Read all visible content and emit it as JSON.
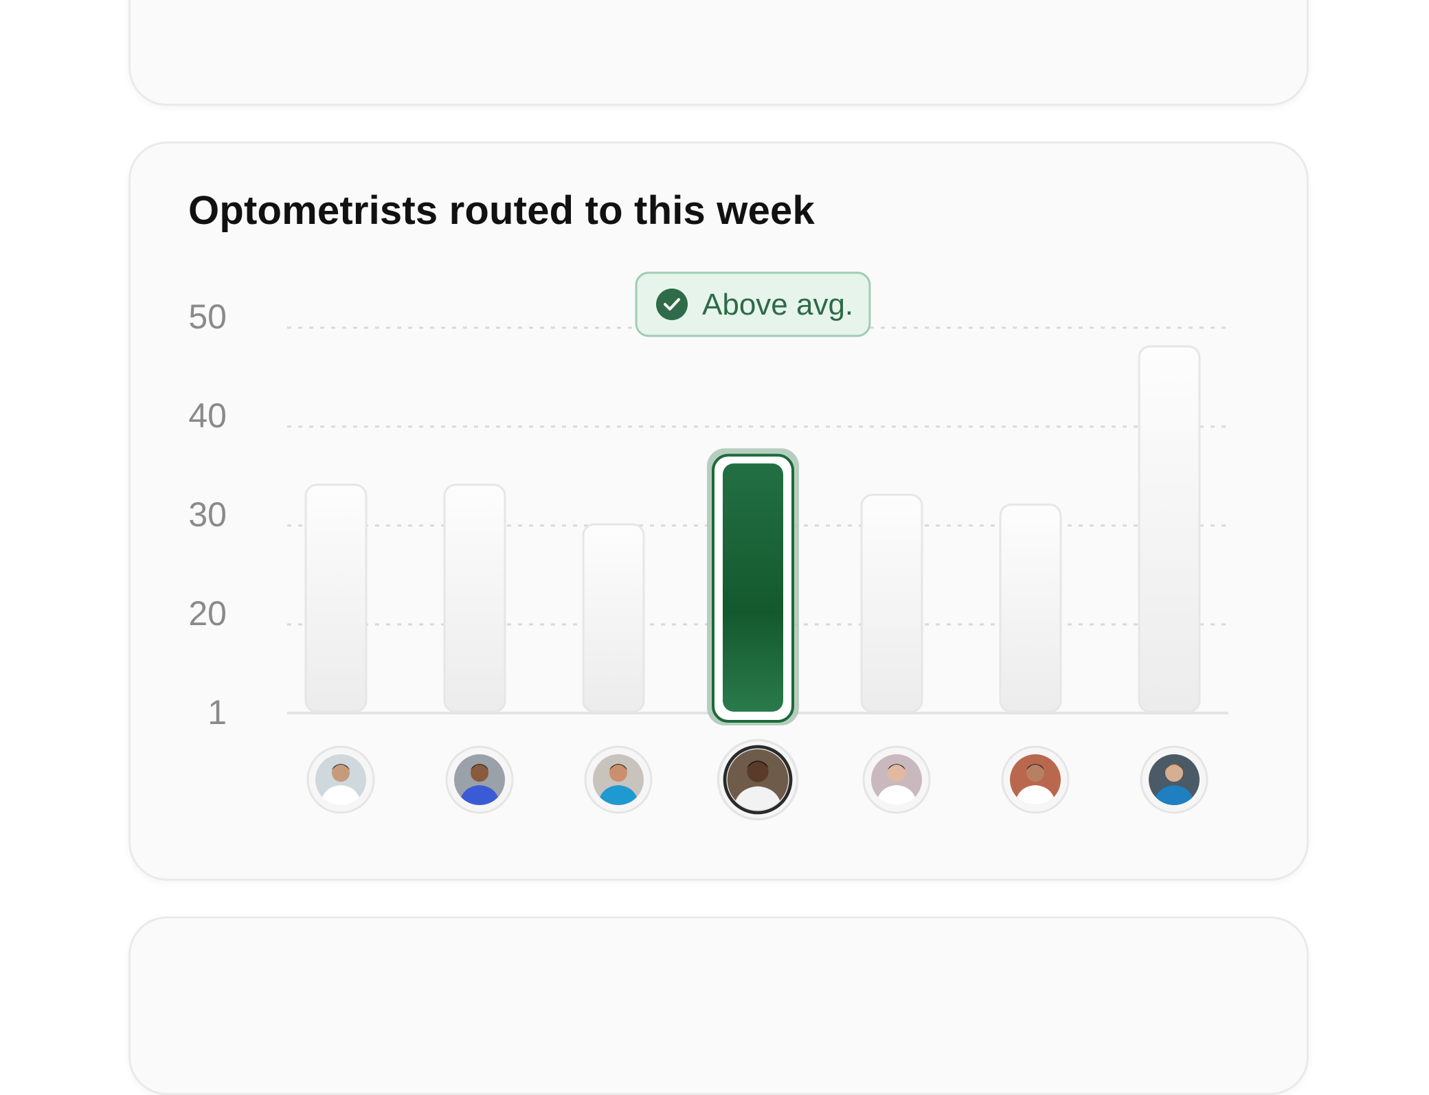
{
  "colors": {
    "accent": "#1d6a3a",
    "accent_light": "#e6f4ec",
    "bar_default": "#f1f0f0",
    "grid": "#d9d9d9",
    "card_bg": "#fbfafa"
  },
  "badge": {
    "label": "Above avg.",
    "icon": "check-circle-icon"
  },
  "chart_data": {
    "type": "bar",
    "title": "Optometrists routed to this week",
    "xlabel": "",
    "ylabel": "",
    "y_ticks": [
      {
        "value": 50,
        "label": "50"
      },
      {
        "value": 40,
        "label": "40"
      },
      {
        "value": 30,
        "label": "30"
      },
      {
        "value": 20,
        "label": "20"
      },
      {
        "value": 1,
        "label": "1"
      }
    ],
    "ylim": [
      1,
      50
    ],
    "grid": true,
    "categories": [
      "optometrist-1",
      "optometrist-2",
      "optometrist-3",
      "optometrist-4",
      "optometrist-5",
      "optometrist-6",
      "optometrist-7"
    ],
    "values": [
      33,
      33,
      29,
      36,
      32,
      31,
      47
    ],
    "highlight_index": 3,
    "avatars": [
      {
        "name": "avatar-1",
        "bg": "#cfd8dc",
        "coat": "#ffffff",
        "skin": "#c69b7b",
        "hair": "#2b2b2b"
      },
      {
        "name": "avatar-2",
        "bg": "#9aa1a8",
        "coat": "#3b5bd6",
        "skin": "#8a5a3c",
        "hair": "#1e1e1e"
      },
      {
        "name": "avatar-3",
        "bg": "#c9c3bd",
        "coat": "#1f9ad1",
        "skin": "#c98f6f",
        "hair": "#2a1a14"
      },
      {
        "name": "avatar-4",
        "bg": "#6e5b4a",
        "coat": "#f2f2f2",
        "skin": "#5a3a28",
        "hair": "#111111"
      },
      {
        "name": "avatar-5",
        "bg": "#c9b9be",
        "coat": "#ffffff",
        "skin": "#e2b9a0",
        "hair": "#222222"
      },
      {
        "name": "avatar-6",
        "bg": "#b9684e",
        "coat": "#ffffff",
        "skin": "#b78064",
        "hair": "#1a1a1a"
      },
      {
        "name": "avatar-7",
        "bg": "#4a5a66",
        "coat": "#1f7fc0",
        "skin": "#d6ae92",
        "hair": "#6b4a2e"
      }
    ]
  }
}
